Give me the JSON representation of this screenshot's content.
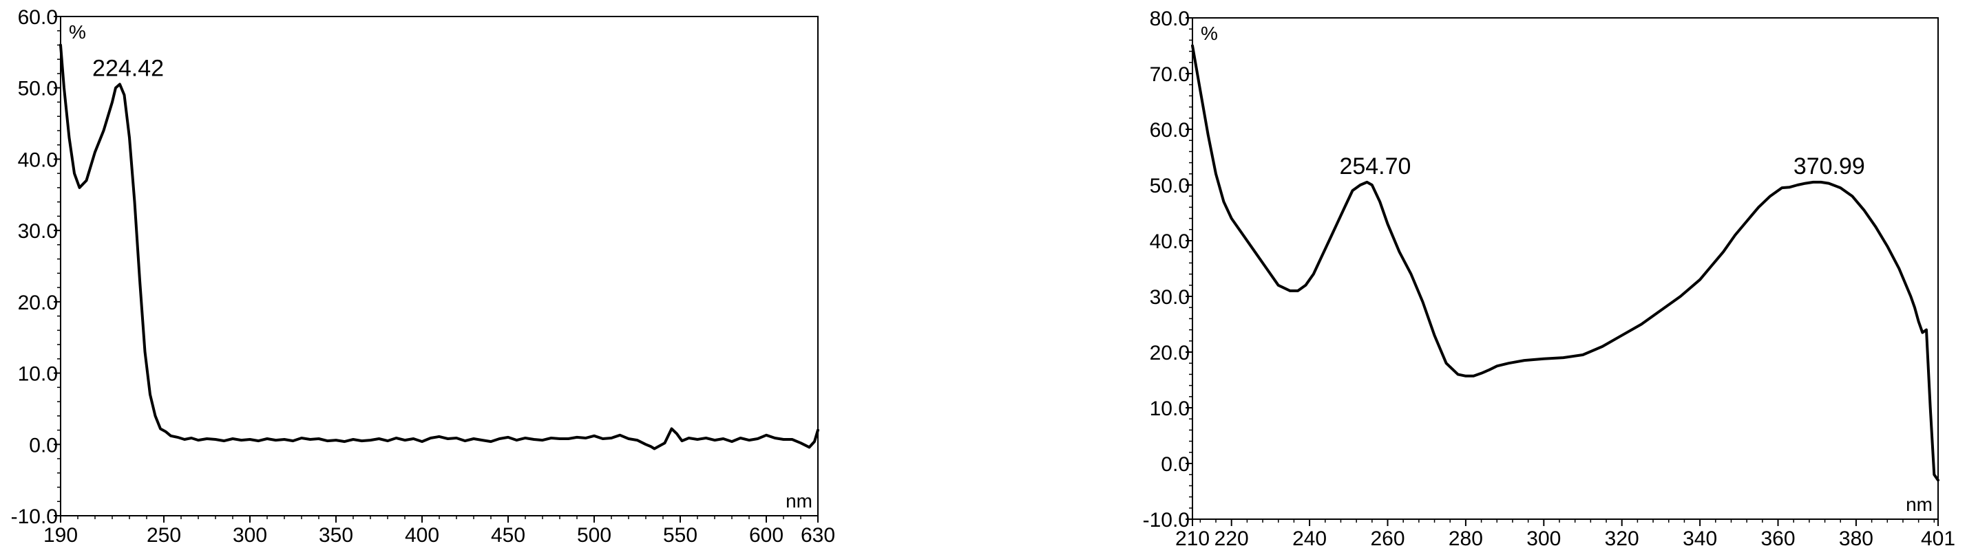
{
  "chart_data": [
    {
      "type": "line",
      "title": "",
      "xlabel": "nm",
      "ylabel": "%",
      "xlim": [
        190,
        630
      ],
      "ylim": [
        -10,
        60
      ],
      "grid": false,
      "x_ticks": [
        190,
        250,
        300,
        350,
        400,
        450,
        500,
        550,
        600,
        630
      ],
      "x_tick_labels": [
        "190",
        "250",
        "300",
        "350",
        "400",
        "450",
        "500",
        "550",
        "600",
        "630"
      ],
      "y_ticks": [
        -10,
        0,
        10,
        20,
        30,
        40,
        50,
        60
      ],
      "y_tick_labels": [
        "-10.0",
        "0.0",
        "10.0",
        "20.0",
        "30.0",
        "40.0",
        "50.0",
        "60.0"
      ],
      "annotations": [
        {
          "text": "224.42",
          "x": 224.42,
          "y": 50.5
        }
      ],
      "series": [
        {
          "color": "#000000",
          "x": [
            190,
            192,
            195,
            198,
            201,
            205,
            210,
            215,
            220,
            222,
            224.42,
            227,
            230,
            233,
            236,
            239,
            242,
            245,
            248,
            251,
            254,
            258,
            262,
            266,
            270,
            275,
            280,
            285,
            290,
            295,
            300,
            305,
            310,
            315,
            320,
            325,
            330,
            335,
            340,
            345,
            350,
            355,
            360,
            365,
            370,
            375,
            380,
            385,
            390,
            395,
            400,
            405,
            410,
            415,
            420,
            425,
            430,
            435,
            440,
            445,
            450,
            455,
            460,
            465,
            470,
            475,
            480,
            485,
            490,
            495,
            500,
            505,
            510,
            515,
            520,
            525,
            530,
            533,
            535,
            538,
            541,
            545,
            548,
            551,
            555,
            560,
            565,
            570,
            575,
            580,
            585,
            590,
            595,
            600,
            605,
            610,
            615,
            620,
            625,
            628,
            630
          ],
          "y": [
            56,
            50,
            43,
            38,
            36,
            37,
            41,
            44,
            48,
            50,
            50.5,
            49,
            43,
            34,
            23,
            13,
            7,
            4,
            2.2,
            1.8,
            1.2,
            1,
            0.7,
            0.9,
            0.6,
            0.8,
            0.7,
            0.5,
            0.8,
            0.6,
            0.7,
            0.5,
            0.8,
            0.6,
            0.7,
            0.5,
            0.9,
            0.7,
            0.8,
            0.5,
            0.6,
            0.4,
            0.7,
            0.5,
            0.6,
            0.8,
            0.5,
            0.9,
            0.6,
            0.8,
            0.4,
            0.9,
            1.1,
            0.8,
            0.9,
            0.5,
            0.8,
            0.6,
            0.4,
            0.8,
            1,
            0.6,
            0.9,
            0.7,
            0.6,
            0.9,
            0.8,
            0.8,
            1,
            0.9,
            1.2,
            0.8,
            0.9,
            1.3,
            0.8,
            0.6,
            0,
            -0.3,
            -0.6,
            -0.2,
            0.2,
            2.2,
            1.5,
            0.5,
            0.9,
            0.7,
            0.9,
            0.6,
            0.8,
            0.4,
            0.9,
            0.6,
            0.8,
            1.3,
            0.9,
            0.7,
            0.7,
            0.2,
            -0.4,
            0.4,
            2
          ]
        }
      ]
    },
    {
      "type": "line",
      "title": "",
      "xlabel": "nm",
      "ylabel": "%",
      "xlim": [
        210,
        401
      ],
      "ylim": [
        -10,
        80
      ],
      "grid": false,
      "x_ticks": [
        210,
        220,
        240,
        260,
        280,
        300,
        320,
        340,
        360,
        380,
        401
      ],
      "x_tick_labels": [
        "210",
        "220",
        "240",
        "260",
        "280",
        "300",
        "320",
        "340",
        "360",
        "380",
        "401"
      ],
      "y_ticks": [
        -10,
        0,
        10,
        20,
        30,
        40,
        50,
        60,
        70,
        80
      ],
      "y_tick_labels": [
        "-10.0",
        "0.0",
        "10.0",
        "20.0",
        "30.0",
        "40.0",
        "50.0",
        "60.0",
        "70.0",
        "80.0"
      ],
      "annotations": [
        {
          "text": "254.70",
          "x": 254.7,
          "y": 50.5
        },
        {
          "text": "370.99",
          "x": 370.99,
          "y": 50.5
        }
      ],
      "series": [
        {
          "color": "#000000",
          "x": [
            210,
            212,
            214,
            216,
            218,
            220,
            223,
            226,
            229,
            232,
            235,
            237,
            239,
            241,
            243,
            245,
            247,
            249,
            251,
            253,
            254.7,
            256,
            258,
            260,
            263,
            266,
            269,
            272,
            275,
            278,
            280,
            282,
            284,
            286,
            288,
            291,
            295,
            300,
            305,
            310,
            315,
            320,
            325,
            330,
            335,
            340,
            343,
            346,
            349,
            352,
            355,
            358,
            361,
            363,
            365,
            367,
            369,
            370.99,
            373,
            376,
            379,
            382,
            385,
            388,
            391,
            394,
            395,
            396,
            397,
            398,
            399,
            400,
            401
          ],
          "y": [
            75,
            67,
            59,
            52,
            47,
            44,
            41,
            38,
            35,
            32,
            31,
            31,
            32,
            34,
            37,
            40,
            43,
            46,
            49,
            50,
            50.5,
            50,
            47,
            43,
            38,
            34,
            29,
            23,
            18,
            16,
            15.7,
            15.7,
            16.2,
            16.8,
            17.5,
            18,
            18.5,
            18.8,
            19,
            19.5,
            21,
            23,
            25,
            27.5,
            30,
            33,
            35.5,
            38,
            41,
            43.5,
            46,
            48,
            49.5,
            49.6,
            50,
            50.3,
            50.5,
            50.5,
            50.3,
            49.5,
            48,
            45.5,
            42.5,
            39,
            35,
            30,
            28,
            25.5,
            23.5,
            24,
            10,
            -2,
            -3
          ]
        }
      ]
    }
  ]
}
